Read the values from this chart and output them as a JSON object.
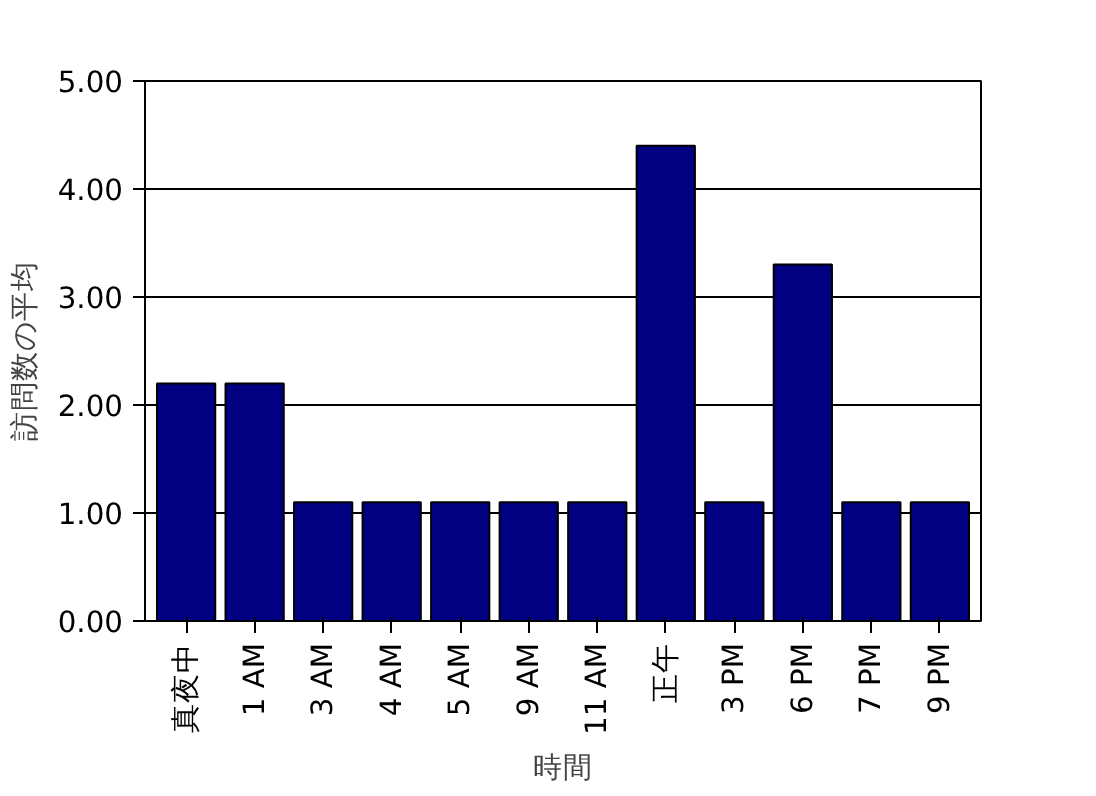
{
  "chart_data": {
    "type": "bar",
    "xlabel": "時間",
    "ylabel": "訪問数の平均",
    "categories": [
      "真夜中",
      "1 AM",
      "3 AM",
      "4 AM",
      "5 AM",
      "9 AM",
      "11 AM",
      "正午",
      "3 PM",
      "6 PM",
      "7 PM",
      "9 PM"
    ],
    "values": [
      2.2,
      2.2,
      1.1,
      1.1,
      1.1,
      1.1,
      1.1,
      4.4,
      1.1,
      3.3,
      1.1,
      1.1
    ],
    "color": "#000080",
    "ylim": [
      0,
      5
    ],
    "yticks": [
      {
        "value": 0,
        "label": "0.00"
      },
      {
        "value": 1,
        "label": "1.00"
      },
      {
        "value": 2,
        "label": "2.00"
      },
      {
        "value": 3,
        "label": "3.00"
      },
      {
        "value": 4,
        "label": "4.00"
      },
      {
        "value": 5,
        "label": "5.00"
      }
    ],
    "grid": "y"
  }
}
